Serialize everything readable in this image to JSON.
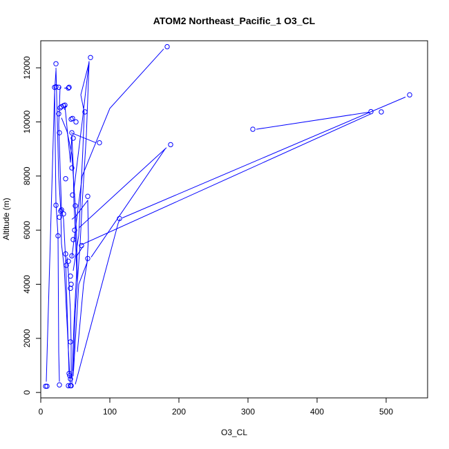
{
  "chart_data": {
    "type": "scatter",
    "title": "ATOM2 Northeast_Pacific_1 O3_CL",
    "xlabel": "O3_CL",
    "ylabel": "Altitude (m)",
    "xlim": [
      0,
      560
    ],
    "ylim": [
      -200,
      13000
    ],
    "xticks": [
      0,
      100,
      200,
      300,
      400,
      500
    ],
    "yticks": [
      0,
      2000,
      4000,
      6000,
      8000,
      10000,
      12000
    ],
    "grid": false,
    "color": "#0000ff",
    "series": [
      {
        "points": [
          {
            "x": 7,
            "y": 230
          },
          {
            "x": 9,
            "y": 230
          },
          {
            "x": 22,
            "y": 11300
          },
          {
            "x": 20,
            "y": 11280
          },
          {
            "x": 26,
            "y": 11280
          },
          {
            "x": 22,
            "y": 12150
          },
          {
            "x": 40,
            "y": 11250
          },
          {
            "x": 41,
            "y": 11280
          },
          {
            "x": 22,
            "y": 6920
          },
          {
            "x": 25,
            "y": 5790
          },
          {
            "x": 27,
            "y": 6480
          },
          {
            "x": 29,
            "y": 6700
          },
          {
            "x": 30,
            "y": 6750
          },
          {
            "x": 26,
            "y": 10300
          },
          {
            "x": 27,
            "y": 9600
          },
          {
            "x": 28,
            "y": 10520
          },
          {
            "x": 30,
            "y": 10560
          },
          {
            "x": 33,
            "y": 10600
          },
          {
            "x": 35,
            "y": 10620
          },
          {
            "x": 36,
            "y": 7900
          },
          {
            "x": 33,
            "y": 6600
          },
          {
            "x": 36,
            "y": 5120
          },
          {
            "x": 37,
            "y": 4700
          },
          {
            "x": 40,
            "y": 4850
          },
          {
            "x": 44,
            "y": 10100
          },
          {
            "x": 46,
            "y": 10130
          },
          {
            "x": 45,
            "y": 9600
          },
          {
            "x": 47,
            "y": 9400
          },
          {
            "x": 45,
            "y": 8300
          },
          {
            "x": 46,
            "y": 7300
          },
          {
            "x": 50,
            "y": 6900
          },
          {
            "x": 49,
            "y": 6000
          },
          {
            "x": 47,
            "y": 5650
          },
          {
            "x": 45,
            "y": 5050
          },
          {
            "x": 43,
            "y": 4300
          },
          {
            "x": 44,
            "y": 4000
          },
          {
            "x": 43,
            "y": 3850
          },
          {
            "x": 43,
            "y": 1870
          },
          {
            "x": 41,
            "y": 700
          },
          {
            "x": 42,
            "y": 620
          },
          {
            "x": 43,
            "y": 500
          },
          {
            "x": 40,
            "y": 250
          },
          {
            "x": 43,
            "y": 250
          },
          {
            "x": 44,
            "y": 250
          },
          {
            "x": 27,
            "y": 280
          },
          {
            "x": 51,
            "y": 10000
          },
          {
            "x": 64,
            "y": 10370
          },
          {
            "x": 72,
            "y": 12380
          },
          {
            "x": 85,
            "y": 9230
          },
          {
            "x": 68,
            "y": 7250
          },
          {
            "x": 59,
            "y": 5430
          },
          {
            "x": 68,
            "y": 4950
          },
          {
            "x": 114,
            "y": 6430
          },
          {
            "x": 183,
            "y": 12780
          },
          {
            "x": 188,
            "y": 9160
          },
          {
            "x": 307,
            "y": 9730
          },
          {
            "x": 478,
            "y": 10380
          },
          {
            "x": 493,
            "y": 10370
          },
          {
            "x": 534,
            "y": 11000
          }
        ],
        "segments": [
          [
            [
              22,
              12000
            ],
            [
              26,
              8000
            ],
            [
              29,
              6700
            ],
            [
              30,
              5500
            ],
            [
              34,
              4600
            ],
            [
              42,
              600
            ],
            [
              43,
              250
            ]
          ],
          [
            [
              28,
              11300
            ],
            [
              26,
              9900
            ],
            [
              27,
              9100
            ],
            [
              30,
              6800
            ],
            [
              33,
              6400
            ],
            [
              36,
              4900
            ],
            [
              41,
              700
            ]
          ],
          [
            [
              20,
              11200
            ],
            [
              22,
              7000
            ],
            [
              25,
              5800
            ],
            [
              26,
              1500
            ],
            [
              27,
              400
            ]
          ],
          [
            [
              8,
              400
            ],
            [
              20,
              11100
            ],
            [
              22,
              11900
            ]
          ],
          [
            [
              35,
              10600
            ],
            [
              38,
              9800
            ],
            [
              43,
              8500
            ],
            [
              45,
              9500
            ],
            [
              47,
              8400
            ],
            [
              48,
              7000
            ],
            [
              50,
              6000
            ],
            [
              52,
              4500
            ],
            [
              48,
              2500
            ],
            [
              45,
              300
            ]
          ],
          [
            [
              38,
              5000
            ],
            [
              40,
              4400
            ],
            [
              43,
              3000
            ],
            [
              44,
              1800
            ],
            [
              44,
              500
            ]
          ],
          [
            [
              30,
              10150
            ],
            [
              38,
              9650
            ],
            [
              45,
              8800
            ],
            [
              50,
              6900
            ],
            [
              52,
              5700
            ],
            [
              53,
              4100
            ]
          ],
          [
            [
              34,
              11250
            ],
            [
              40,
              11250
            ]
          ],
          [
            [
              34,
              10450
            ],
            [
              37,
              10600
            ]
          ],
          [
            [
              44,
              9600
            ],
            [
              80,
              9230
            ]
          ],
          [
            [
              47,
              4500
            ],
            [
              55,
              5800
            ],
            [
              61,
              9000
            ],
            [
              63,
              10350
            ],
            [
              58,
              11000
            ],
            [
              70,
              12200
            ],
            [
              66,
              9500
            ],
            [
              60,
              7000
            ],
            [
              57,
              5500
            ],
            [
              50,
              3000
            ],
            [
              47,
              800
            ]
          ],
          [
            [
              48,
              7500
            ],
            [
              60,
              10000
            ],
            [
              70,
              12250
            ]
          ],
          [
            [
              45,
              6400
            ],
            [
              50,
              6500
            ],
            [
              68,
              7100
            ],
            [
              69,
              5700
            ],
            [
              67,
              4800
            ],
            [
              55,
              4000
            ],
            [
              47,
              600
            ]
          ],
          [
            [
              56,
              6100
            ],
            [
              182,
              9050
            ]
          ],
          [
            [
              51,
              5000
            ],
            [
              61,
              5400
            ]
          ],
          [
            [
              53,
              1500
            ],
            [
              62,
              4000
            ],
            [
              68,
              4950
            ]
          ],
          [
            [
              50,
              300
            ],
            [
              112,
              6250
            ],
            [
              115,
              6430
            ]
          ],
          [
            [
              45,
              5000
            ],
            [
              60,
              8000
            ],
            [
              100,
              10500
            ],
            [
              178,
              12700
            ]
          ],
          [
            [
              73,
              5000
            ],
            [
              180,
              9000
            ]
          ],
          [
            [
              58,
              5450
            ],
            [
              478,
              10300
            ]
          ],
          [
            [
              118,
              6450
            ],
            [
              528,
              10920
            ]
          ],
          [
            [
              312,
              9730
            ],
            [
              475,
              10360
            ]
          ]
        ]
      }
    ]
  }
}
